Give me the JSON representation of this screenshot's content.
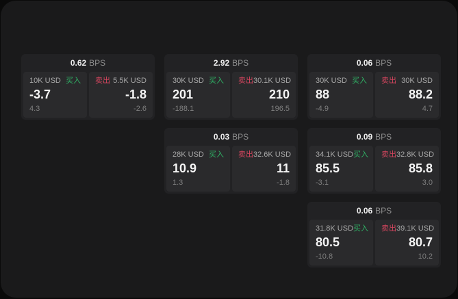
{
  "theme": {
    "outer_bg": "#0a0a0a",
    "window_bg": "#1a1a1b",
    "card_bg": "#222224",
    "panel_bg": "#2a2a2c",
    "value_color": "#f4f4f4",
    "muted_color": "#7f7f7f",
    "buy_color": "#2fb366",
    "sell_color": "#d8465f"
  },
  "labels": {
    "buy": "买入",
    "sell": "卖出",
    "bps_unit": "BPS"
  },
  "cards": [
    {
      "col": 1,
      "row": 1,
      "bps": "0.62",
      "buy": {
        "notional": "10K USD",
        "price": "-3.7",
        "sub": "4.3"
      },
      "sell": {
        "notional": "5.5K USD",
        "price": "-1.8",
        "sub": "-2.6"
      }
    },
    {
      "col": 2,
      "row": 1,
      "bps": "2.92",
      "buy": {
        "notional": "30K USD",
        "price": "201",
        "sub": "-188.1"
      },
      "sell": {
        "notional": "30.1K USD",
        "price": "210",
        "sub": "196.5"
      }
    },
    {
      "col": 3,
      "row": 1,
      "bps": "0.06",
      "buy": {
        "notional": "30K USD",
        "price": "88",
        "sub": "-4.9"
      },
      "sell": {
        "notional": "30K USD",
        "price": "88.2",
        "sub": "4.7"
      }
    },
    {
      "col": 2,
      "row": 2,
      "bps": "0.03",
      "buy": {
        "notional": "28K USD",
        "price": "10.9",
        "sub": "1.3"
      },
      "sell": {
        "notional": "32.6K USD",
        "price": "11",
        "sub": "-1.8"
      }
    },
    {
      "col": 3,
      "row": 2,
      "bps": "0.09",
      "buy": {
        "notional": "34.1K USD",
        "price": "85.5",
        "sub": "-3.1"
      },
      "sell": {
        "notional": "32.8K USD",
        "price": "85.8",
        "sub": "3.0"
      }
    },
    {
      "col": 3,
      "row": 3,
      "bps": "0.06",
      "buy": {
        "notional": "31.8K USD",
        "price": "80.5",
        "sub": "-10.8"
      },
      "sell": {
        "notional": "39.1K USD",
        "price": "80.7",
        "sub": "10.2"
      }
    }
  ]
}
